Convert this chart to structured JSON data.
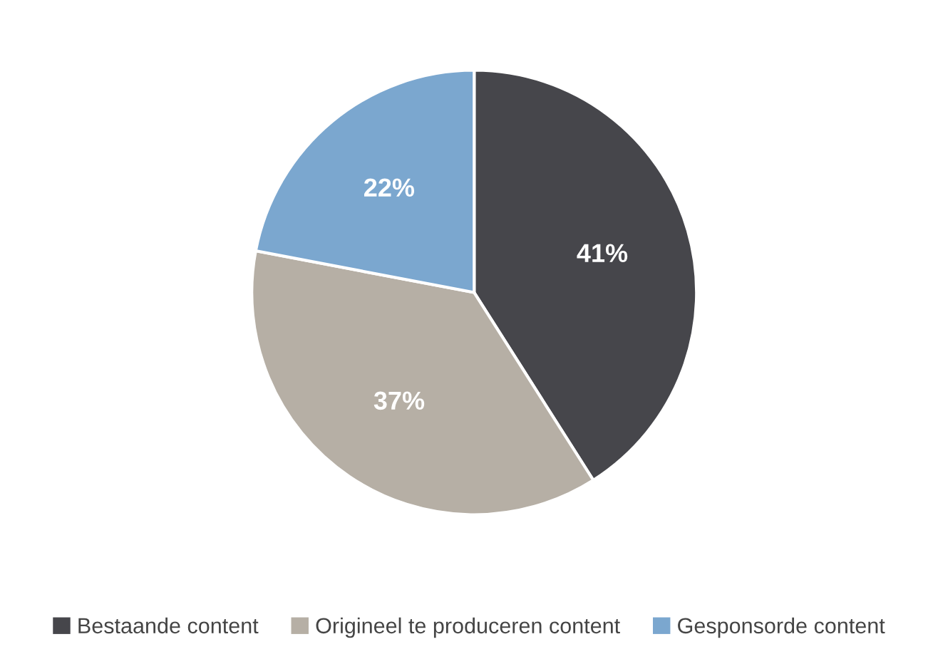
{
  "chart_data": {
    "type": "pie",
    "categories": [
      "Bestaande content",
      "Origineel te produceren content",
      "Gesponsorde content"
    ],
    "values": [
      41,
      37,
      22
    ],
    "colors": [
      "#46464b",
      "#b6afa5",
      "#7ba7cf"
    ],
    "value_labels": [
      "41%",
      "37%",
      "22%"
    ],
    "legend": "bottom"
  }
}
